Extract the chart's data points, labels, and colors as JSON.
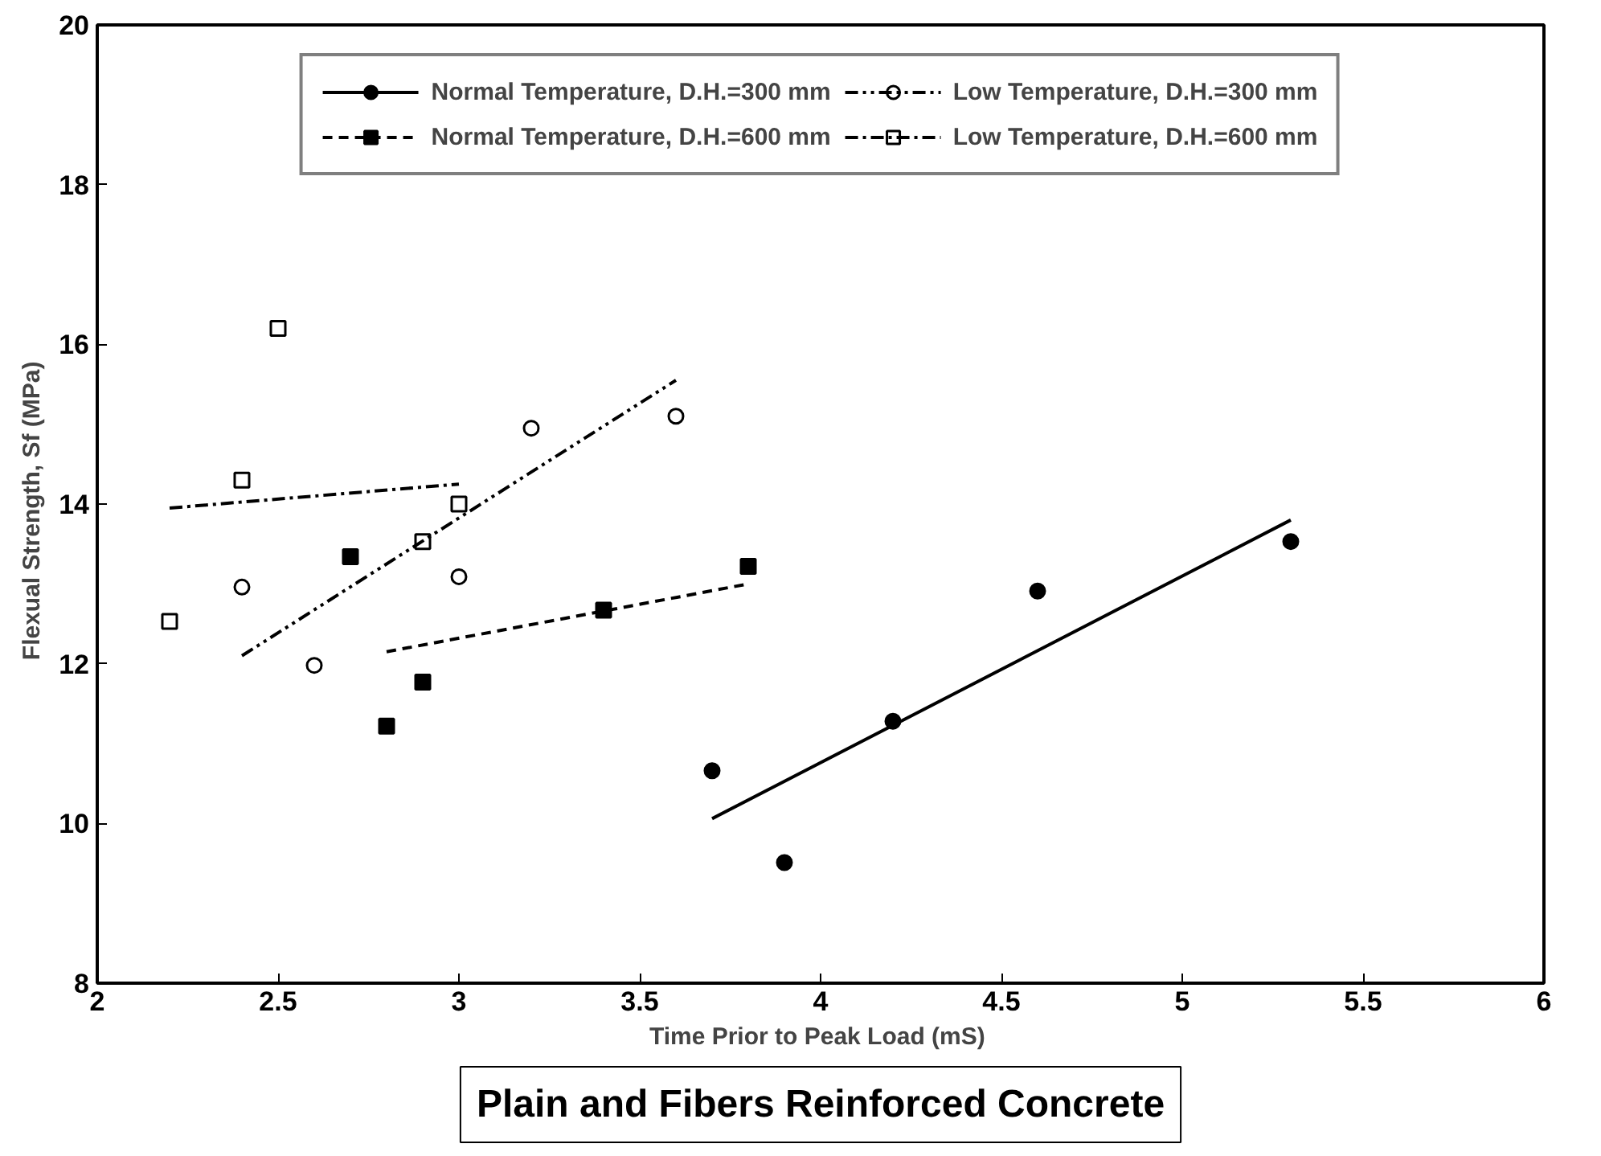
{
  "chart_data": {
    "type": "scatter",
    "title": "Plain and Fibers Reinforced Concrete",
    "xlabel": "Time Prior to Peak Load  (mS)",
    "ylabel": "Flexual Strength, Sf   (MPa)",
    "xlim": [
      2,
      6
    ],
    "xticks": [
      2,
      2.5,
      3,
      3.5,
      4,
      4.5,
      5,
      5.5,
      6
    ],
    "ylim": [
      8,
      20
    ],
    "yticks": [
      8,
      10,
      12,
      14,
      16,
      18,
      20
    ],
    "grid": false,
    "legend": "top",
    "series": [
      {
        "name": "Normal Temperature, D.H.=300 mm",
        "color": "#000000",
        "marker": "circle",
        "line_style": "solid",
        "x": [
          3.7,
          3.9,
          4.2,
          4.6,
          5.3
        ],
        "values": [
          10.66,
          9.51,
          11.28,
          12.91,
          13.53
        ]
      },
      {
        "type": "line",
        "color": "#000000",
        "marker": "none",
        "line_style": "solid",
        "x": [
          3.7,
          5.3
        ],
        "values": [
          10.06,
          13.8
        ]
      },
      {
        "name": "Normal Temperature, D.H.=600 mm",
        "color": "#000000",
        "marker": "square",
        "line_style": "dashed",
        "x": [
          2.7,
          2.8,
          2.9,
          3.4,
          3.8
        ],
        "values": [
          13.34,
          11.22,
          11.77,
          12.67,
          13.22
        ]
      },
      {
        "type": "line",
        "color": "#000000",
        "marker": "none",
        "line_style": "dashed",
        "x": [
          2.8,
          3.8
        ],
        "values": [
          12.15,
          13.0
        ]
      },
      {
        "name": "Low Temperature, D.H.=300 mm",
        "color": "#000000",
        "marker": "circle open",
        "line_style": "dashdotdot",
        "x": [
          2.4,
          2.6,
          3.0,
          3.2,
          3.6
        ],
        "values": [
          12.96,
          11.98,
          13.09,
          14.95,
          15.1
        ]
      },
      {
        "type": "line",
        "color": "#000000",
        "marker": "none",
        "line_style": "dashdotdot",
        "x": [
          2.4,
          3.6
        ],
        "values": [
          12.1,
          15.55
        ]
      },
      {
        "name": "Low Temperature, D.H.=600 mm",
        "color": "#000000",
        "marker": "square open",
        "line_style": "dashdot",
        "x": [
          2.2,
          2.4,
          2.5,
          2.9,
          3.0
        ],
        "values": [
          12.53,
          14.3,
          16.2,
          13.53,
          14.0
        ]
      },
      {
        "type": "line",
        "color": "#000000",
        "marker": "none",
        "line_style": "dashdot",
        "x": [
          2.2,
          3.0
        ],
        "values": [
          13.95,
          14.25
        ]
      }
    ]
  }
}
